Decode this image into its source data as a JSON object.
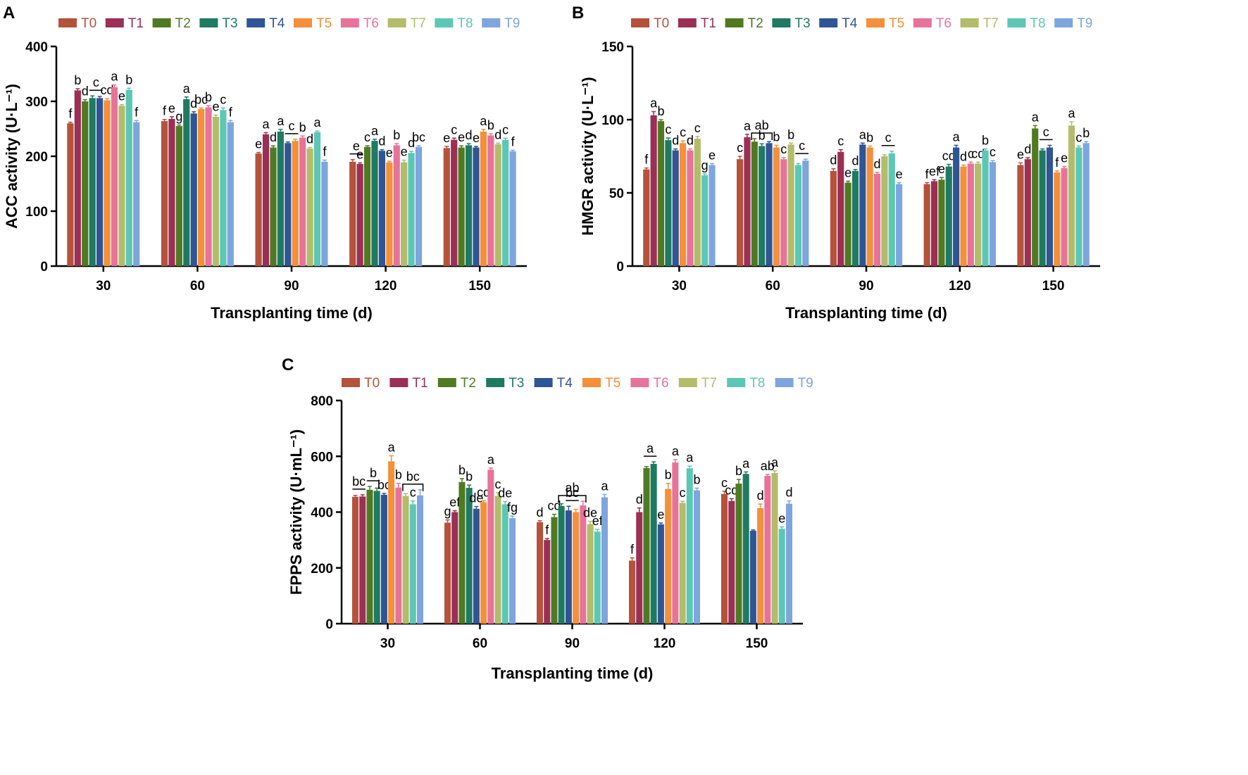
{
  "figure": {
    "panel_letters": [
      "A",
      "B",
      "C"
    ]
  },
  "legend": {
    "entries": [
      "T0",
      "T1",
      "T2",
      "T3",
      "T4",
      "T5",
      "T6",
      "T7",
      "T8",
      "T9"
    ],
    "colors": [
      "#b5523b",
      "#9b2f55",
      "#4f7a22",
      "#1f7a62",
      "#2e5596",
      "#f58f3a",
      "#e8739a",
      "#b2bc6a",
      "#5cc7b4",
      "#7ea5de"
    ]
  },
  "chart_data": [
    {
      "panel": "A",
      "type": "bar",
      "title": "",
      "xlabel": "Transplanting time (d)",
      "ylabel": "ACC activity (U·L⁻¹)",
      "categories": [
        "30",
        "60",
        "90",
        "120",
        "150"
      ],
      "yticks": [
        "0",
        "100",
        "200",
        "300",
        "400"
      ],
      "ylim": [
        0,
        400
      ],
      "series": [
        {
          "name": "T0",
          "values": [
            260,
            264,
            205,
            190,
            215
          ],
          "errors": [
            2,
            3,
            2,
            4,
            3
          ],
          "letters": [
            "f",
            "f",
            "e",
            "",
            "e"
          ]
        },
        {
          "name": "T1",
          "values": [
            320,
            268,
            240,
            186,
            230
          ],
          "errors": [
            3,
            4,
            3,
            2,
            3
          ],
          "letters": [
            "b",
            "e",
            "a",
            "e",
            "c"
          ]
        },
        {
          "name": "T2",
          "values": [
            300,
            255,
            216,
            217,
            216
          ],
          "errors": [
            3,
            2,
            3,
            2,
            3
          ],
          "letters": [
            "d",
            "g",
            "d",
            "c",
            "e"
          ]
        },
        {
          "name": "T3",
          "values": [
            306,
            304,
            245,
            228,
            220
          ],
          "errors": [
            4,
            4,
            4,
            3,
            3
          ],
          "letters": [
            "",
            "a",
            "a",
            "a",
            "d"
          ]
        },
        {
          "name": "T4",
          "values": [
            306,
            278,
            224,
            210,
            216
          ],
          "errors": [
            3,
            3,
            2,
            2,
            2
          ],
          "letters": [
            "",
            "d",
            "",
            "d",
            "e"
          ]
        },
        {
          "name": "T5",
          "values": [
            302,
            286,
            228,
            189,
            245
          ],
          "errors": [
            3,
            2,
            3,
            2,
            4
          ],
          "letters": [
            "cd",
            "bc",
            "",
            "e",
            "a"
          ]
        },
        {
          "name": "T6",
          "values": [
            326,
            289,
            234,
            220,
            238
          ],
          "errors": [
            4,
            3,
            3,
            3,
            3
          ],
          "letters": [
            "a",
            "b",
            "b",
            "b",
            "b"
          ]
        },
        {
          "name": "T7",
          "values": [
            292,
            272,
            214,
            189,
            222
          ],
          "errors": [
            2,
            3,
            2,
            4,
            2
          ],
          "letters": [
            "e",
            "e",
            "d",
            "e",
            "d"
          ]
        },
        {
          "name": "T8",
          "values": [
            321,
            284,
            244,
            206,
            230
          ],
          "errors": [
            3,
            4,
            2,
            3,
            3
          ],
          "letters": [
            "b",
            "c",
            "a",
            "d",
            "c"
          ]
        },
        {
          "name": "T9",
          "values": [
            262,
            262,
            190,
            217,
            209
          ],
          "errors": [
            3,
            3,
            3,
            2,
            2
          ],
          "letters": [
            "f",
            "f",
            "f",
            "bc",
            "f"
          ]
        }
      ],
      "group_annotations": [
        {
          "category": 0,
          "from": 3,
          "to": 4,
          "label": "c",
          "style": "line"
        },
        {
          "category": 2,
          "from": 4,
          "to": 5,
          "label": "c",
          "style": "line"
        },
        {
          "category": 3,
          "from": 0,
          "to": 1,
          "label": "e",
          "style": "line"
        }
      ]
    },
    {
      "panel": "B",
      "type": "bar",
      "title": "",
      "xlabel": "Transplanting time (d)",
      "ylabel": "HMGR activity (U·L⁻¹)",
      "categories": [
        "30",
        "60",
        "90",
        "120",
        "150"
      ],
      "yticks": [
        "0",
        "50",
        "100",
        "150"
      ],
      "ylim": [
        0,
        150
      ],
      "series": [
        {
          "name": "T0",
          "values": [
            66,
            73,
            65,
            56,
            69
          ],
          "errors": [
            1,
            2,
            1.5,
            1,
            1.5
          ],
          "letters": [
            "f",
            "c",
            "d",
            "f",
            "e"
          ]
        },
        {
          "name": "T1",
          "values": [
            103,
            88,
            78,
            58,
            73
          ],
          "errors": [
            2.5,
            2,
            1.5,
            1,
            1
          ],
          "letters": [
            "a",
            "a",
            "c",
            "ef",
            "d"
          ]
        },
        {
          "name": "T2",
          "values": [
            99,
            85,
            57,
            59,
            94
          ],
          "errors": [
            1,
            2,
            1,
            1.5,
            2
          ],
          "letters": [
            "b",
            "",
            "e",
            "e",
            "a"
          ]
        },
        {
          "name": "T3",
          "values": [
            86,
            82,
            65,
            68,
            79
          ],
          "errors": [
            1.5,
            1.5,
            1,
            1.5,
            1
          ],
          "letters": [
            "c",
            "b",
            "d",
            "cd",
            ""
          ]
        },
        {
          "name": "T4",
          "values": [
            79,
            84,
            83,
            81,
            81
          ],
          "errors": [
            1,
            1,
            1,
            1.5,
            1.5
          ],
          "letters": [
            "d",
            "",
            "a",
            "a",
            ""
          ]
        },
        {
          "name": "T5",
          "values": [
            84,
            81,
            81,
            68,
            64
          ],
          "errors": [
            1.5,
            1.5,
            1,
            1,
            1
          ],
          "letters": [
            "c",
            "b",
            "b",
            "d",
            "f"
          ]
        },
        {
          "name": "T6",
          "values": [
            79,
            73,
            63,
            70,
            67
          ],
          "errors": [
            1,
            1,
            1,
            1,
            1
          ],
          "letters": [
            "d",
            "c",
            "d",
            "c",
            "e"
          ]
        },
        {
          "name": "T7",
          "values": [
            87,
            83,
            75,
            70,
            96
          ],
          "errors": [
            1.5,
            1,
            1,
            1,
            2.5
          ],
          "letters": [
            "c",
            "b",
            "",
            "cd",
            "a"
          ]
        },
        {
          "name": "T8",
          "values": [
            62,
            69,
            77,
            79,
            81
          ],
          "errors": [
            1,
            1,
            1.5,
            1,
            1
          ],
          "letters": [
            "g",
            "",
            "",
            "b",
            "c"
          ]
        },
        {
          "name": "T9",
          "values": [
            69,
            72,
            56,
            71,
            84
          ],
          "errors": [
            1,
            1,
            1,
            1,
            1
          ],
          "letters": [
            "e",
            "",
            "e",
            "c",
            "b"
          ]
        }
      ],
      "group_annotations": [
        {
          "category": 1,
          "from": 2,
          "to": 4,
          "label": "ab",
          "style": "bracket"
        },
        {
          "category": 1,
          "from": 8,
          "to": 9,
          "label": "c",
          "style": "line"
        },
        {
          "category": 2,
          "from": 7,
          "to": 8,
          "label": "c",
          "style": "line"
        },
        {
          "category": 4,
          "from": 3,
          "to": 4,
          "label": "c",
          "style": "line"
        }
      ]
    },
    {
      "panel": "C",
      "type": "bar",
      "title": "",
      "xlabel": "Transplanting time (d)",
      "ylabel": "FPPS activity (U·mL⁻¹)",
      "categories": [
        "30",
        "60",
        "90",
        "120",
        "150"
      ],
      "yticks": [
        "0",
        "200",
        "400",
        "600",
        "800"
      ],
      "ylim": [
        0,
        800
      ],
      "series": [
        {
          "name": "T0",
          "values": [
            455,
            362,
            364,
            226,
            465
          ],
          "errors": [
            5,
            10,
            5,
            10,
            10
          ],
          "letters": [
            "",
            "g",
            "d",
            "f",
            "c"
          ]
        },
        {
          "name": "T1",
          "values": [
            456,
            400,
            300,
            400,
            440
          ],
          "errors": [
            6,
            5,
            5,
            15,
            8
          ],
          "letters": [
            "",
            "ef",
            "f",
            "d",
            "cd"
          ]
        },
        {
          "name": "T2",
          "values": [
            480,
            508,
            382,
            558,
            502
          ],
          "errors": [
            12,
            12,
            10,
            5,
            15
          ],
          "letters": [
            "",
            "b",
            "cd",
            "",
            "b"
          ]
        },
        {
          "name": "T3",
          "values": [
            476,
            487,
            422,
            573,
            537
          ],
          "errors": [
            10,
            10,
            8,
            7,
            7
          ],
          "letters": [
            "",
            "b",
            "",
            "",
            "a"
          ]
        },
        {
          "name": "T4",
          "values": [
            462,
            412,
            406,
            356,
            333
          ],
          "errors": [
            5,
            8,
            15,
            5,
            3
          ],
          "letters": [
            "bc",
            "de",
            "",
            "e",
            ""
          ]
        },
        {
          "name": "T5",
          "values": [
            582,
            436,
            400,
            483,
            414
          ],
          "errors": [
            20,
            5,
            10,
            20,
            15
          ],
          "letters": [
            "a",
            "cd",
            "",
            "b",
            "d"
          ]
        },
        {
          "name": "T6",
          "values": [
            488,
            552,
            424,
            578,
            530
          ],
          "errors": [
            15,
            6,
            15,
            10,
            5
          ],
          "letters": [
            "b",
            "a",
            "",
            "a",
            "ab"
          ]
        },
        {
          "name": "T7",
          "values": [
            458,
            458,
            357,
            433,
            540
          ],
          "errors": [
            8,
            12,
            10,
            6,
            8
          ],
          "letters": [
            "",
            "c",
            "de",
            "c",
            "a"
          ]
        },
        {
          "name": "T8",
          "values": [
            428,
            428,
            330,
            557,
            340
          ],
          "errors": [
            12,
            10,
            8,
            8,
            7
          ],
          "letters": [
            "c",
            "de",
            "ef",
            "a",
            "e"
          ]
        },
        {
          "name": "T9",
          "values": [
            460,
            378,
            453,
            478,
            430
          ],
          "errors": [
            20,
            8,
            10,
            8,
            10
          ],
          "letters": [
            "",
            "fg",
            "a",
            "b",
            "d"
          ]
        }
      ],
      "group_annotations": [
        {
          "category": 0,
          "from": 0,
          "to": 1,
          "label": "bc",
          "style": "line"
        },
        {
          "category": 0,
          "from": 2,
          "to": 3,
          "label": "b",
          "style": "line"
        },
        {
          "category": 0,
          "from": 7,
          "to": 9,
          "label": "bc",
          "style": "bracket"
        },
        {
          "category": 2,
          "from": 3,
          "to": 6,
          "label": "ab",
          "style": "bracket"
        },
        {
          "category": 2,
          "from": 4,
          "to": 5,
          "label": "bc",
          "style": "line"
        },
        {
          "category": 3,
          "from": 2,
          "to": 3,
          "label": "a",
          "style": "line"
        }
      ]
    }
  ]
}
